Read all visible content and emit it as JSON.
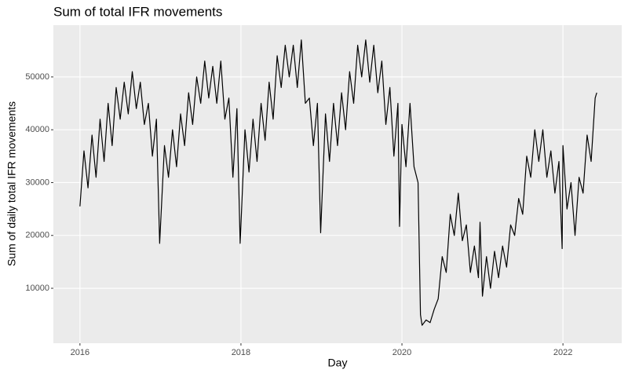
{
  "chart_data": {
    "type": "line",
    "title": "Sum of total IFR movements",
    "x_label": "Day",
    "y_label": "Sum of daily total IFR movements",
    "xlim": [
      2015.67,
      2022.73
    ],
    "ylim": [
      -400,
      59800
    ],
    "xticks": [
      2016,
      2018,
      2020,
      2022
    ],
    "yticks": [
      10000,
      20000,
      30000,
      40000,
      50000
    ],
    "grid": true,
    "x": [
      2016.0,
      2016.05,
      2016.1,
      2016.15,
      2016.2,
      2016.25,
      2016.3,
      2016.35,
      2016.4,
      2016.45,
      2016.5,
      2016.55,
      2016.6,
      2016.65,
      2016.7,
      2016.75,
      2016.8,
      2016.85,
      2016.9,
      2016.95,
      2016.99,
      2017.05,
      2017.1,
      2017.15,
      2017.2,
      2017.25,
      2017.3,
      2017.35,
      2017.4,
      2017.45,
      2017.5,
      2017.55,
      2017.6,
      2017.65,
      2017.7,
      2017.75,
      2017.8,
      2017.85,
      2017.9,
      2017.95,
      2017.99,
      2018.05,
      2018.1,
      2018.15,
      2018.2,
      2018.25,
      2018.3,
      2018.35,
      2018.4,
      2018.45,
      2018.5,
      2018.55,
      2018.6,
      2018.65,
      2018.7,
      2018.75,
      2018.8,
      2018.85,
      2018.9,
      2018.95,
      2018.99,
      2019.05,
      2019.1,
      2019.15,
      2019.2,
      2019.25,
      2019.3,
      2019.35,
      2019.4,
      2019.45,
      2019.5,
      2019.55,
      2019.6,
      2019.65,
      2019.7,
      2019.75,
      2019.8,
      2019.85,
      2019.9,
      2019.95,
      2019.97,
      2020.0,
      2020.05,
      2020.1,
      2020.15,
      2020.2,
      2020.23,
      2020.25,
      2020.3,
      2020.35,
      2020.4,
      2020.45,
      2020.5,
      2020.55,
      2020.6,
      2020.65,
      2020.7,
      2020.75,
      2020.8,
      2020.85,
      2020.9,
      2020.95,
      2020.97,
      2021.0,
      2021.05,
      2021.1,
      2021.15,
      2021.2,
      2021.25,
      2021.3,
      2021.35,
      2021.4,
      2021.45,
      2021.5,
      2021.55,
      2021.6,
      2021.65,
      2021.7,
      2021.75,
      2021.8,
      2021.85,
      2021.9,
      2021.95,
      2021.99,
      2022.0,
      2022.05,
      2022.1,
      2022.15,
      2022.2,
      2022.25,
      2022.3,
      2022.35,
      2022.4,
      2022.42
    ],
    "series": [
      {
        "name": "Sum of total IFR movements",
        "color": "#000000",
        "values": [
          25500,
          36000,
          29000,
          39000,
          31000,
          42000,
          34000,
          45000,
          37000,
          48000,
          42000,
          49000,
          43000,
          51000,
          44000,
          49000,
          41000,
          45000,
          35000,
          42000,
          18500,
          37000,
          31000,
          40000,
          33000,
          43000,
          37000,
          47000,
          41000,
          50000,
          45000,
          53000,
          46000,
          52000,
          45000,
          53000,
          42000,
          46000,
          31000,
          44000,
          18500,
          40000,
          32000,
          42000,
          34000,
          45000,
          38000,
          49000,
          42000,
          54000,
          48000,
          56000,
          50000,
          56000,
          48000,
          57000,
          45000,
          46000,
          37000,
          45000,
          20500,
          43000,
          34000,
          45000,
          37000,
          47000,
          40000,
          51000,
          45000,
          56000,
          50000,
          57000,
          49000,
          56000,
          47000,
          53000,
          41000,
          48000,
          35000,
          45000,
          21700,
          41000,
          33000,
          45000,
          33000,
          30000,
          5000,
          3000,
          4000,
          3500,
          6000,
          8000,
          16000,
          13000,
          24000,
          20000,
          28000,
          19000,
          22000,
          13000,
          18000,
          12000,
          22500,
          8500,
          16000,
          10000,
          17000,
          12000,
          18000,
          14000,
          22000,
          20000,
          27000,
          24000,
          35000,
          31000,
          40000,
          34000,
          40000,
          31000,
          36000,
          28000,
          34000,
          17500,
          37000,
          25000,
          30000,
          20000,
          31000,
          28000,
          39000,
          34000,
          46000,
          47000
        ]
      }
    ]
  }
}
